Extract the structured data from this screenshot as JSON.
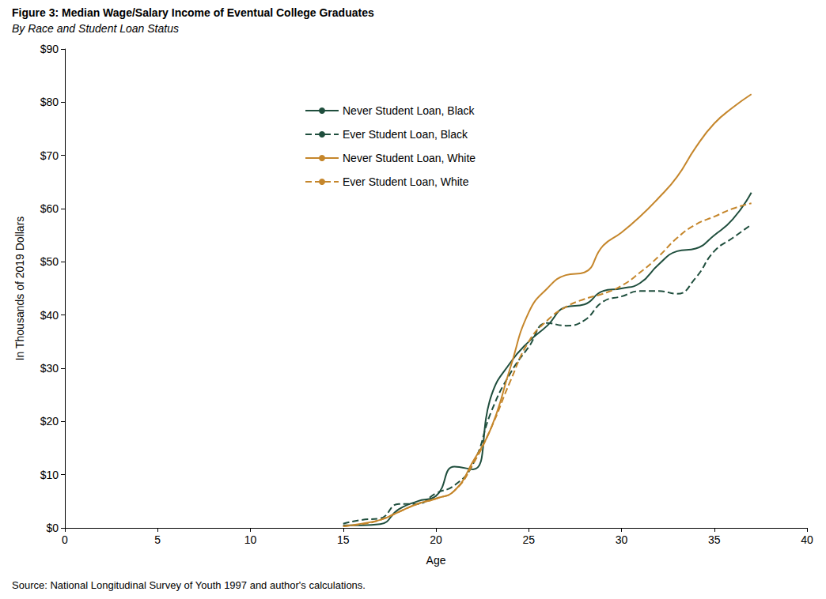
{
  "chart_data": {
    "type": "line",
    "title": "Figure 3: Median Wage/Salary Income of Eventual College Graduates",
    "subtitle": "By Race and Student Loan Status",
    "x_label": "Age",
    "y_label": "In Thousands of 2019 Dollars",
    "source": "Source: National Longitudinal Survey of Youth 1997 and author's calculations.",
    "x": [
      15,
      16,
      17,
      18,
      19,
      20,
      21,
      22,
      23,
      24,
      25,
      26,
      27,
      28,
      29,
      30,
      31,
      32,
      33,
      34,
      35,
      36,
      37
    ],
    "series": [
      {
        "name": "Never Student Loan, Black",
        "color": "#1f4e3d",
        "line_style": "solid",
        "values": [
          0.5,
          0.5,
          0.7,
          3.5,
          5,
          6,
          11.5,
          11,
          25,
          31,
          35,
          38,
          41.5,
          42,
          44.5,
          45,
          46,
          49.5,
          52,
          52.5,
          55,
          58,
          63
        ]
      },
      {
        "name": "Ever Student Loan, Black",
        "color": "#1f4e3d",
        "line_style": "dashed",
        "values": [
          0.8,
          1.5,
          1.8,
          4.5,
          4.5,
          6.5,
          8,
          12,
          22,
          29,
          34,
          38.5,
          38,
          39,
          42.5,
          43.5,
          44.5,
          44.5,
          44,
          47,
          52,
          54.5,
          57
        ]
      },
      {
        "name": "Never Student Loan, White",
        "color": "#c5862b",
        "line_style": "solid",
        "values": [
          0.3,
          0.8,
          1.5,
          3,
          4.5,
          5.5,
          7,
          12.5,
          19,
          30,
          40.5,
          45,
          47.5,
          48,
          53,
          55.5,
          58.5,
          62,
          66,
          71.5,
          76,
          79,
          81.5
        ]
      },
      {
        "name": "Ever Student Loan, White",
        "color": "#c5862b",
        "line_style": "dashed",
        "values": [
          0.3,
          0.7,
          1.5,
          3,
          4.5,
          5.5,
          7,
          12,
          19,
          27.5,
          35,
          39,
          41.5,
          43,
          44,
          45.5,
          48,
          51,
          54.5,
          57,
          58.5,
          60,
          61
        ]
      }
    ],
    "xlim": [
      0,
      40
    ],
    "xticks": [
      0,
      5,
      10,
      15,
      20,
      25,
      30,
      35,
      40
    ],
    "ylim": [
      0,
      90
    ],
    "yticks": [
      {
        "value": 0,
        "label": "$0"
      },
      {
        "value": 10,
        "label": "$10"
      },
      {
        "value": 20,
        "label": "$20"
      },
      {
        "value": 30,
        "label": "$30"
      },
      {
        "value": 40,
        "label": "$40"
      },
      {
        "value": 50,
        "label": "$50"
      },
      {
        "value": 60,
        "label": "$60"
      },
      {
        "value": 70,
        "label": "$70"
      },
      {
        "value": 80,
        "label": "$80"
      },
      {
        "value": 90,
        "label": "$90"
      }
    ],
    "grid": false,
    "legend": "upper left"
  }
}
